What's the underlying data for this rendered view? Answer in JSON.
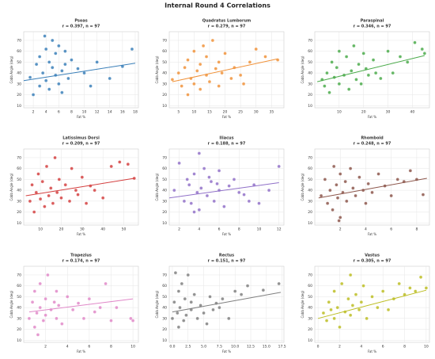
{
  "title": "Internal Round 4 Correlations",
  "chart_data": [
    {
      "type": "scatter",
      "title": "Psoas",
      "subtitle": "r = 0.397, n = 97",
      "xlabel": "Fat %",
      "ylabel": "Cobb Angle (deg)",
      "color": "#3a7fb8",
      "grid": true,
      "xlim": [
        0.5,
        18.5
      ],
      "ylim": [
        8,
        78
      ],
      "xticks": [
        2,
        4,
        6,
        8,
        10,
        12,
        14,
        16,
        18
      ],
      "yticks": [
        10,
        20,
        30,
        40,
        50,
        60,
        70
      ],
      "x": [
        1.5,
        2,
        2.5,
        3,
        3,
        3.5,
        4,
        4,
        4.5,
        4.5,
        5,
        5,
        5.5,
        5.5,
        6,
        6,
        6.5,
        6.5,
        7,
        7,
        7.5,
        8,
        9,
        10,
        11,
        12,
        14,
        16,
        17.5,
        3.8
      ],
      "y": [
        36,
        20,
        48,
        28,
        55,
        40,
        62,
        33,
        25,
        50,
        45,
        70,
        38,
        58,
        30,
        65,
        42,
        22,
        48,
        60,
        35,
        52,
        44,
        40,
        28,
        50,
        35,
        46,
        62,
        74
      ],
      "fit": {
        "x": [
          0.5,
          18
        ],
        "y": [
          33,
          49
        ]
      }
    },
    {
      "type": "scatter",
      "title": "Quadratus Lumborum",
      "subtitle": "r = 0.279, n = 97",
      "xlabel": "Fat %",
      "ylabel": "Cobb Angle (deg)",
      "color": "#f0923a",
      "grid": true,
      "xlim": [
        2,
        39
      ],
      "ylim": [
        8,
        78
      ],
      "xticks": [
        5,
        10,
        15,
        20,
        25,
        30,
        35
      ],
      "yticks": [
        10,
        20,
        30,
        40,
        50,
        60,
        70
      ],
      "x": [
        3,
        5,
        6,
        7,
        8,
        8,
        9,
        10,
        10,
        11,
        12,
        12,
        13,
        14,
        14,
        15,
        16,
        17,
        18,
        18,
        19,
        20,
        22,
        23,
        25,
        26,
        28,
        30,
        33,
        37
      ],
      "y": [
        34,
        40,
        28,
        45,
        20,
        52,
        35,
        60,
        30,
        42,
        25,
        48,
        65,
        38,
        55,
        32,
        70,
        44,
        28,
        50,
        40,
        58,
        35,
        45,
        38,
        30,
        50,
        62,
        55,
        52
      ],
      "fit": {
        "x": [
          3,
          37
        ],
        "y": [
          32,
          53
        ]
      }
    },
    {
      "type": "scatter",
      "title": "Paraspinal",
      "subtitle": "r = 0.346, n = 97",
      "xlabel": "Fat %",
      "ylabel": "Cobb Angle (deg)",
      "color": "#4aaa4a",
      "grid": true,
      "xlim": [
        0,
        47
      ],
      "ylim": [
        8,
        78
      ],
      "xticks": [
        10,
        20,
        30,
        40
      ],
      "yticks": [
        10,
        20,
        30,
        40,
        50,
        60,
        70
      ],
      "x": [
        3,
        4,
        5,
        6,
        7,
        8,
        9,
        10,
        10,
        12,
        13,
        14,
        15,
        16,
        17,
        18,
        19,
        20,
        21,
        22,
        24,
        25,
        27,
        30,
        32,
        35,
        38,
        41,
        44,
        45
      ],
      "y": [
        34,
        28,
        40,
        22,
        50,
        36,
        45,
        30,
        60,
        38,
        55,
        25,
        42,
        65,
        34,
        48,
        30,
        58,
        44,
        38,
        52,
        40,
        35,
        60,
        40,
        55,
        50,
        68,
        62,
        58
      ],
      "fit": {
        "x": [
          1,
          45
        ],
        "y": [
          32,
          56
        ]
      }
    },
    {
      "type": "scatter",
      "title": "Latissimus Dorsi",
      "subtitle": "r = 0.209, n = 97",
      "xlabel": "Fat %",
      "ylabel": "Cobb Angle (deg)",
      "color": "#d43f3f",
      "grid": true,
      "xlim": [
        2,
        57
      ],
      "ylim": [
        8,
        78
      ],
      "xticks": [
        10,
        20,
        30,
        40,
        50
      ],
      "yticks": [
        10,
        20,
        30,
        40,
        50,
        60,
        70
      ],
      "x": [
        5,
        6,
        7,
        8,
        9,
        10,
        11,
        12,
        13,
        14,
        15,
        16,
        17,
        18,
        19,
        20,
        22,
        24,
        25,
        27,
        28,
        30,
        32,
        34,
        36,
        40,
        44,
        48,
        52,
        55
      ],
      "y": [
        30,
        45,
        20,
        38,
        55,
        32,
        48,
        25,
        62,
        35,
        42,
        28,
        70,
        38,
        50,
        33,
        45,
        30,
        60,
        40,
        36,
        52,
        28,
        44,
        40,
        33,
        62,
        66,
        64,
        51
      ],
      "fit": {
        "x": [
          3,
          55
        ],
        "y": [
          35,
          51
        ]
      }
    },
    {
      "type": "scatter",
      "title": "Iliacus",
      "subtitle": "r = 0.188, n = 97",
      "xlabel": "Fat %",
      "ylabel": "Cobb Angle (deg)",
      "color": "#9070c8",
      "grid": true,
      "xlim": [
        1,
        12.5
      ],
      "ylim": [
        8,
        78
      ],
      "xticks": [
        2,
        4,
        6,
        8,
        10,
        12
      ],
      "yticks": [
        10,
        20,
        30,
        40,
        50,
        60,
        70
      ],
      "x": [
        1.5,
        2,
        2.5,
        2.8,
        3,
        3.2,
        3.5,
        3.8,
        4,
        4,
        4.2,
        4.5,
        4.8,
        5,
        5.2,
        5.5,
        6,
        6,
        6.5,
        7,
        7.5,
        8,
        8.5,
        9,
        9.5,
        10,
        11,
        12,
        3.5,
        5.8
      ],
      "y": [
        40,
        65,
        30,
        50,
        45,
        28,
        55,
        38,
        74,
        22,
        42,
        60,
        35,
        52,
        48,
        30,
        58,
        40,
        25,
        44,
        50,
        38,
        36,
        30,
        45,
        28,
        40,
        62,
        20,
        46
      ],
      "fit": {
        "x": [
          1,
          12
        ],
        "y": [
          33,
          47
        ]
      }
    },
    {
      "type": "scatter",
      "title": "Rhomboid",
      "subtitle": "r = 0.248, n = 97",
      "xlabel": "Fat %",
      "ylabel": "Cobb Angle (deg)",
      "color": "#8c564b",
      "grid": true,
      "xlim": [
        0,
        9
      ],
      "ylim": [
        8,
        78
      ],
      "xticks": [
        2,
        4,
        6,
        8
      ],
      "yticks": [
        10,
        20,
        30,
        40,
        50,
        60,
        70
      ],
      "x": [
        0.5,
        0.8,
        1,
        1.2,
        1.4,
        1.5,
        1.7,
        1.8,
        2,
        2,
        2.2,
        2.4,
        2.5,
        2.8,
        3,
        3.2,
        3.5,
        3.8,
        4,
        4.2,
        4.5,
        5,
        5.5,
        6,
        6.5,
        7,
        7.5,
        8,
        8.5,
        1.9
      ],
      "y": [
        35,
        50,
        28,
        40,
        22,
        62,
        45,
        33,
        55,
        15,
        38,
        48,
        30,
        60,
        42,
        35,
        52,
        40,
        28,
        46,
        38,
        55,
        44,
        35,
        50,
        48,
        58,
        50,
        36,
        12
      ],
      "fit": {
        "x": [
          0.3,
          8.8
        ],
        "y": [
          33,
          51
        ]
      }
    },
    {
      "type": "scatter",
      "title": "Trapezius",
      "subtitle": "r = 0.174, n = 97",
      "xlabel": "Fat %",
      "ylabel": "Cobb Angle (deg)",
      "color": "#e088c8",
      "grid": true,
      "xlim": [
        0,
        10.5
      ],
      "ylim": [
        8,
        78
      ],
      "xticks": [
        2,
        4,
        6,
        8,
        10
      ],
      "yticks": [
        10,
        20,
        30,
        40,
        50,
        60,
        70
      ],
      "x": [
        0.5,
        0.8,
        1,
        1,
        1.2,
        1.5,
        1.5,
        1.8,
        2,
        2,
        2.2,
        2.5,
        2.8,
        3,
        3,
        3.2,
        3.5,
        4,
        4.5,
        5,
        5.5,
        6,
        6.5,
        7,
        7.5,
        8,
        8.5,
        9.8,
        10,
        1.3
      ],
      "y": [
        30,
        45,
        22,
        55,
        35,
        40,
        62,
        28,
        48,
        33,
        70,
        38,
        45,
        30,
        55,
        42,
        25,
        50,
        38,
        44,
        30,
        48,
        36,
        40,
        62,
        28,
        40,
        30,
        28,
        15
      ],
      "fit": {
        "x": [
          0.5,
          10
        ],
        "y": [
          36,
          48
        ]
      }
    },
    {
      "type": "scatter",
      "title": "Rectus",
      "subtitle": "r = 0.151, n = 97",
      "xlabel": "Fat %",
      "ylabel": "Cobb Angle (deg)",
      "color": "#7f7f7f",
      "grid": true,
      "xlim": [
        -0.5,
        17.8
      ],
      "ylim": [
        8,
        78
      ],
      "xticks": [
        {
          "value": 0,
          "label": "0.0"
        },
        2.5,
        {
          "value": 5,
          "label": "5.0"
        },
        7.5,
        {
          "value": 10,
          "label": "10.0"
        },
        12.5,
        {
          "value": 15,
          "label": "15.0"
        },
        17.5
      ],
      "yticks": [
        10,
        20,
        30,
        40,
        50,
        60,
        70
      ],
      "x": [
        0,
        0.3,
        0.5,
        0.8,
        1,
        1,
        1.2,
        1.5,
        1.8,
        2,
        2.2,
        2.5,
        3,
        3,
        3.5,
        4,
        4.5,
        5,
        5.5,
        6,
        6.5,
        7,
        7.5,
        8,
        9,
        10,
        11,
        12,
        14.5,
        17
      ],
      "y": [
        30,
        45,
        72,
        35,
        55,
        22,
        40,
        62,
        28,
        48,
        33,
        70,
        38,
        45,
        52,
        30,
        42,
        35,
        25,
        50,
        38,
        44,
        40,
        48,
        30,
        55,
        52,
        60,
        56,
        62
      ],
      "fit": {
        "x": [
          0,
          17.3
        ],
        "y": [
          36,
          54
        ]
      }
    },
    {
      "type": "scatter",
      "title": "Vastus",
      "subtitle": "r = 0.305, n = 97",
      "xlabel": "Fat %",
      "ylabel": "Cobb Angle (deg)",
      "color": "#bcbd22",
      "grid": true,
      "xlim": [
        -0.3,
        10.3
      ],
      "ylim": [
        8,
        78
      ],
      "xticks": [
        0,
        2,
        4,
        6,
        8,
        10
      ],
      "yticks": [
        10,
        20,
        30,
        40,
        50,
        60,
        70
      ],
      "x": [
        0.5,
        0.8,
        1,
        1.2,
        1.5,
        1.5,
        1.8,
        2,
        2.2,
        2.5,
        2.8,
        3,
        3,
        3.2,
        3.5,
        3.8,
        4,
        4.2,
        4.5,
        5,
        5.5,
        6,
        6.5,
        7,
        7.5,
        8,
        8.5,
        9,
        9.5,
        10
      ],
      "y": [
        35,
        28,
        45,
        38,
        30,
        55,
        40,
        22,
        62,
        36,
        48,
        33,
        70,
        42,
        52,
        38,
        45,
        60,
        30,
        50,
        40,
        55,
        38,
        48,
        62,
        52,
        58,
        55,
        68,
        58
      ],
      "fit": {
        "x": [
          0,
          10
        ],
        "y": [
          30,
          56
        ]
      }
    }
  ]
}
